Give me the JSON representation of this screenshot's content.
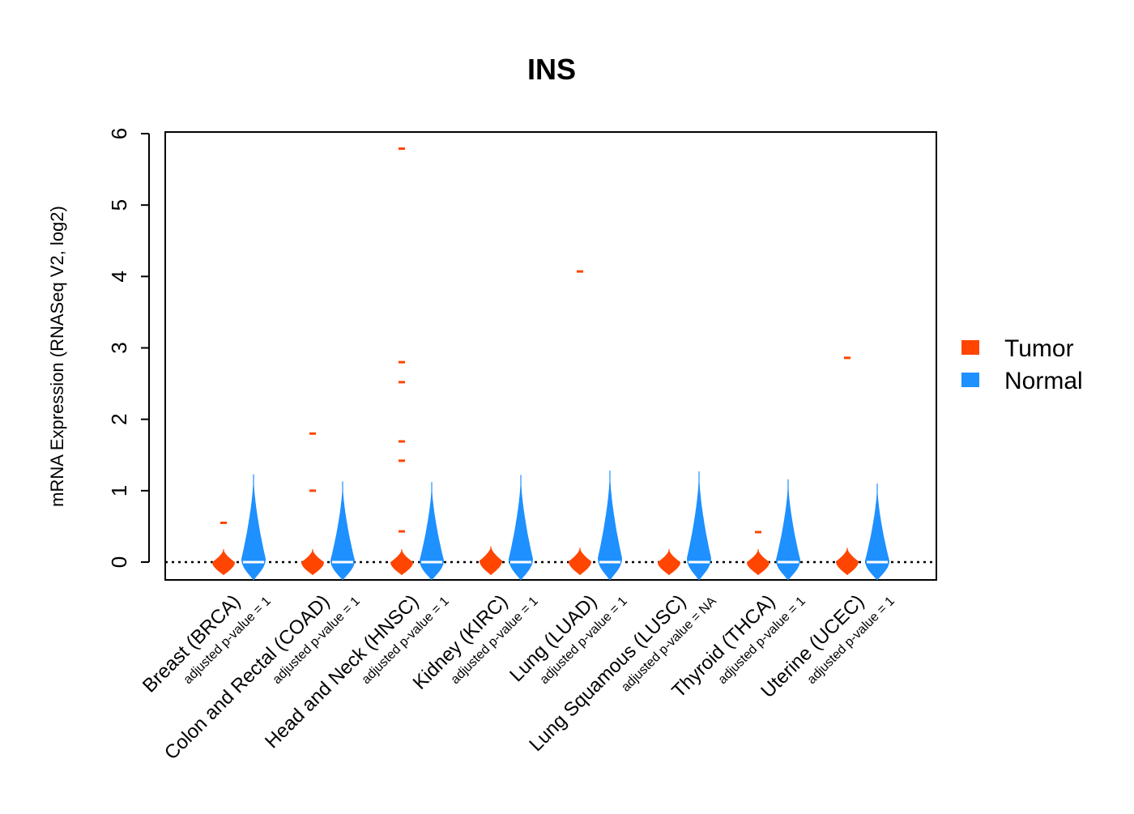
{
  "chart_data": {
    "type": "violin",
    "title": "INS",
    "ylabel": "mRNA Expression (RNASeq V2, log2)",
    "xlabel": "",
    "ylim": [
      -0.25,
      6.0
    ],
    "yticks": [
      "0",
      "1",
      "2",
      "3",
      "4",
      "5",
      "6"
    ],
    "reference_line": 0,
    "legend": {
      "position": "right",
      "entries": [
        {
          "name": "Tumor",
          "color": "#ff4500"
        },
        {
          "name": "Normal",
          "color": "#1e90ff"
        }
      ]
    },
    "categories": [
      "Breast (BRCA)",
      "Colon and Rectal (COAD)",
      "Head and Neck (HNSC)",
      "Kidney (KIRC)",
      "Lung (LUAD)",
      "Lung Squamous (LUSC)",
      "Thyroid (THCA)",
      "Uterine (UCEC)"
    ],
    "p_value_labels": [
      "adjusted p-value = 1",
      "adjusted p-value = 1",
      "adjusted p-value = 1",
      "adjusted p-value = 1",
      "adjusted p-value = 1",
      "adjusted p-value = NA",
      "adjusted p-value = 1",
      "adjusted p-value = 1"
    ],
    "series": [
      {
        "name": "Tumor",
        "color": "#ff4500",
        "violin_range": [
          [
            -0.18,
            0.18
          ],
          [
            -0.18,
            0.18
          ],
          [
            -0.18,
            0.18
          ],
          [
            -0.18,
            0.22
          ],
          [
            -0.18,
            0.2
          ],
          [
            -0.18,
            0.18
          ],
          [
            -0.18,
            0.18
          ],
          [
            -0.18,
            0.2
          ]
        ],
        "outliers": [
          [
            0.55
          ],
          [
            1.0,
            1.8
          ],
          [
            0.43,
            1.42,
            1.69,
            2.52,
            2.8,
            5.79
          ],
          [],
          [
            4.07
          ],
          [],
          [
            0.42
          ],
          [
            2.86
          ]
        ]
      },
      {
        "name": "Normal",
        "color": "#1e90ff",
        "violin_range": [
          [
            -0.25,
            1.23
          ],
          [
            -0.25,
            1.13
          ],
          [
            -0.25,
            1.12
          ],
          [
            -0.25,
            1.22
          ],
          [
            -0.25,
            1.28
          ],
          [
            -0.25,
            1.27
          ],
          [
            -0.25,
            1.16
          ],
          [
            -0.25,
            1.1
          ]
        ],
        "outliers": [
          [],
          [],
          [],
          [],
          [],
          [],
          [],
          []
        ]
      }
    ]
  }
}
